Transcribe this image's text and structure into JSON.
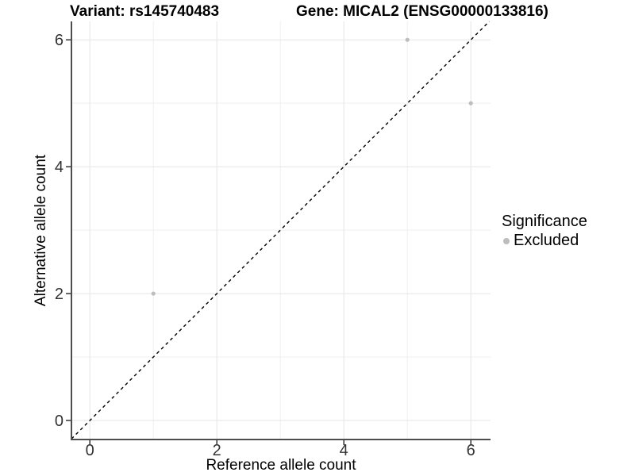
{
  "figure": {
    "title_variant": "Variant: rs145740483",
    "title_gene": "Gene: MICAL2 (ENSG00000133816)"
  },
  "legend": {
    "title": "Significance",
    "items": [
      {
        "label": "Excluded",
        "color": "#bdbdbd",
        "marker": "circle-icon"
      }
    ]
  },
  "chart_data": {
    "type": "scatter",
    "title": "Variant: rs145740483        Gene: MICAL2 (ENSG00000133816)",
    "xlabel": "Reference allele count",
    "ylabel": "Alternative allele count",
    "xlim": [
      -0.29,
      6.31
    ],
    "ylim": [
      -0.3,
      6.29
    ],
    "xticks": [
      0,
      2,
      4,
      6
    ],
    "yticks": [
      0,
      2,
      4,
      6
    ],
    "xminor": [
      1,
      3,
      5
    ],
    "yminor": [
      1,
      3,
      5
    ],
    "grid": true,
    "legend_position": "right",
    "series": [
      {
        "name": "Excluded",
        "color": "#bdbdbd",
        "points": [
          {
            "x": 1,
            "y": 2
          },
          {
            "x": 5,
            "y": 6
          },
          {
            "x": 6,
            "y": 5
          }
        ]
      }
    ],
    "reference_line": {
      "type": "identity",
      "style": "dashed",
      "color": "#000000"
    },
    "colors": {
      "grid_major": "#e5e5e5",
      "grid_minor": "#efefef",
      "axis": "#4d4d4d",
      "tick": "#333333",
      "background": "#ffffff"
    }
  }
}
